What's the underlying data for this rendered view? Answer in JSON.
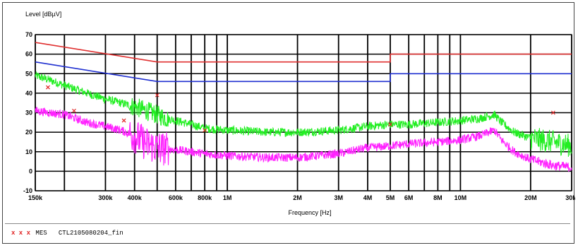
{
  "chart_data": {
    "type": "line",
    "ylabel": "Level [dBµV]",
    "xlabel": "Frequency [Hz]",
    "xscale": "log",
    "xlim": [
      150000,
      30000000
    ],
    "ylim": [
      -10,
      70
    ],
    "grid": true,
    "y_ticks": [
      70,
      60,
      50,
      40,
      30,
      20,
      10,
      0,
      -10
    ],
    "x_ticks": [
      {
        "label": "150k",
        "value": 150000
      },
      {
        "label": "300k",
        "value": 300000
      },
      {
        "label": "400k",
        "value": 400000
      },
      {
        "label": "600k",
        "value": 600000
      },
      {
        "label": "800k",
        "value": 800000
      },
      {
        "label": "1M",
        "value": 1000000
      },
      {
        "label": "2M",
        "value": 2000000
      },
      {
        "label": "3M",
        "value": 3000000
      },
      {
        "label": "4M",
        "value": 4000000
      },
      {
        "label": "5M",
        "value": 5000000
      },
      {
        "label": "6M",
        "value": 6000000
      },
      {
        "label": "8M",
        "value": 8000000
      },
      {
        "label": "10M",
        "value": 10000000
      },
      {
        "label": "20M",
        "value": 20000000
      },
      {
        "label": "30M",
        "value": 30000000
      }
    ],
    "bold_gridlines_x": [
      150000,
      200000,
      300000,
      400000,
      500000,
      600000,
      700000,
      800000,
      900000,
      1000000,
      2000000,
      3000000,
      4000000,
      5000000,
      6000000,
      7000000,
      8000000,
      9000000,
      10000000,
      20000000,
      30000000
    ],
    "series": [
      {
        "color": "#e03030",
        "points": [
          [
            150000,
            66
          ],
          [
            500000,
            56
          ],
          [
            5000000,
            56
          ],
          [
            5000000,
            60
          ],
          [
            30000000,
            60
          ]
        ]
      },
      {
        "color": "#2030d0",
        "points": [
          [
            150000,
            56
          ],
          [
            500000,
            46
          ],
          [
            5000000,
            46
          ],
          [
            5000000,
            50
          ],
          [
            30000000,
            50
          ]
        ]
      },
      {
        "color": "#22ee22",
        "points": [
          [
            150000,
            49
          ],
          [
            170000,
            47
          ],
          [
            200000,
            44
          ],
          [
            250000,
            40
          ],
          [
            300000,
            37
          ],
          [
            350000,
            35
          ],
          [
            400000,
            33
          ],
          [
            450000,
            31
          ],
          [
            500000,
            29
          ],
          [
            550000,
            27
          ],
          [
            600000,
            26
          ],
          [
            700000,
            24
          ],
          [
            800000,
            22
          ],
          [
            1000000,
            21
          ],
          [
            1500000,
            20
          ],
          [
            2000000,
            20
          ],
          [
            3000000,
            21
          ],
          [
            4000000,
            23
          ],
          [
            5000000,
            24
          ],
          [
            6000000,
            24
          ],
          [
            8000000,
            25
          ],
          [
            10000000,
            26
          ],
          [
            12000000,
            27
          ],
          [
            14000000,
            29
          ],
          [
            15000000,
            25
          ],
          [
            17000000,
            20
          ],
          [
            20000000,
            17
          ],
          [
            25000000,
            15
          ],
          [
            30000000,
            13
          ]
        ]
      },
      {
        "color": "#ff22ff",
        "points": [
          [
            150000,
            31
          ],
          [
            200000,
            29
          ],
          [
            250000,
            25
          ],
          [
            300000,
            23
          ],
          [
            350000,
            21
          ],
          [
            400000,
            18
          ],
          [
            450000,
            14
          ],
          [
            500000,
            12
          ],
          [
            600000,
            11
          ],
          [
            700000,
            10
          ],
          [
            800000,
            9
          ],
          [
            1000000,
            8
          ],
          [
            1500000,
            7
          ],
          [
            2000000,
            7
          ],
          [
            3000000,
            9
          ],
          [
            4000000,
            12
          ],
          [
            5000000,
            13
          ],
          [
            6000000,
            14
          ],
          [
            8000000,
            15
          ],
          [
            10000000,
            16
          ],
          [
            12000000,
            18
          ],
          [
            14000000,
            21
          ],
          [
            15000000,
            16
          ],
          [
            17000000,
            10
          ],
          [
            20000000,
            6
          ],
          [
            25000000,
            3
          ],
          [
            30000000,
            2
          ]
        ]
      }
    ],
    "markers": {
      "symbol": "x",
      "color": "#e02020",
      "points": [
        [
          170000,
          43
        ],
        [
          220000,
          31
        ],
        [
          360000,
          26
        ],
        [
          500000,
          39
        ],
        [
          800000,
          21
        ],
        [
          5000000,
          24
        ],
        [
          25000000,
          30
        ]
      ]
    }
  },
  "footer": {
    "marks": "x x x",
    "text": "MES   CTL2105080204_fin"
  }
}
